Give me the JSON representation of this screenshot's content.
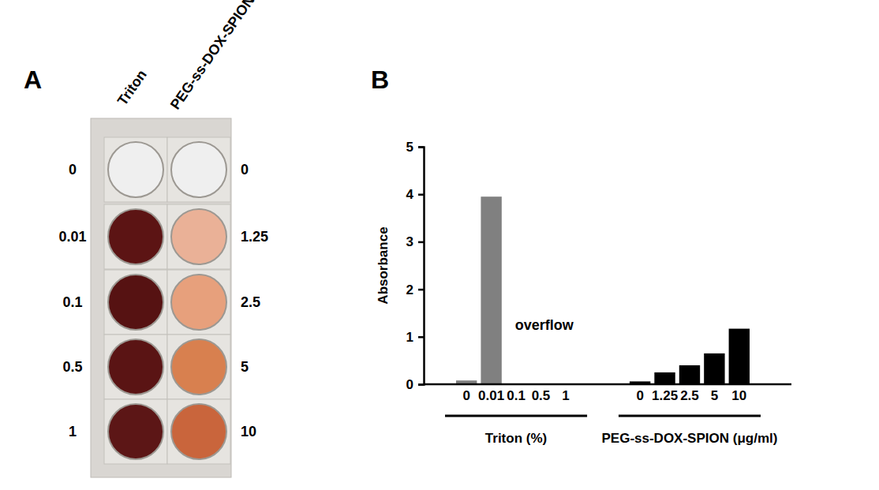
{
  "panel_labels": [
    "A",
    "B"
  ],
  "panel_a": {
    "columns": [
      "Triton",
      "PEG-ss-DOX-SPION"
    ],
    "row_labels": [
      [
        "0",
        "0.01",
        "0.1",
        "0.5",
        "1"
      ],
      [
        "0",
        "1.25",
        "2.5",
        "5",
        "10"
      ]
    ],
    "colors": [
      [
        "#efefef",
        "#5c1414",
        "#561212",
        "#5a1414",
        "#5c1616"
      ],
      [
        "#efefef",
        "#eab197",
        "#e7a07c",
        "#d8804f",
        "#c9653c"
      ]
    ]
  },
  "chart_data": {
    "type": "bar",
    "y_label": "Absorbance",
    "ylim": [
      0,
      5
    ],
    "yticks": [
      0,
      1,
      2,
      3,
      4,
      5
    ],
    "annotations": [
      "overflow"
    ],
    "groups": [
      {
        "label": "Triton (%)",
        "categories": [
          "0",
          "0.01",
          "0.1",
          "0.5",
          "1"
        ],
        "values": [
          0.08,
          3.95,
          null,
          null,
          null
        ],
        "color": "#808080"
      },
      {
        "label": "PEG-ss-DOX-SPION (μg/ml)",
        "categories": [
          "0",
          "1.25",
          "2.5",
          "5",
          "10"
        ],
        "values": [
          0.06,
          0.25,
          0.4,
          0.65,
          1.17
        ],
        "color": "#000000"
      }
    ]
  }
}
